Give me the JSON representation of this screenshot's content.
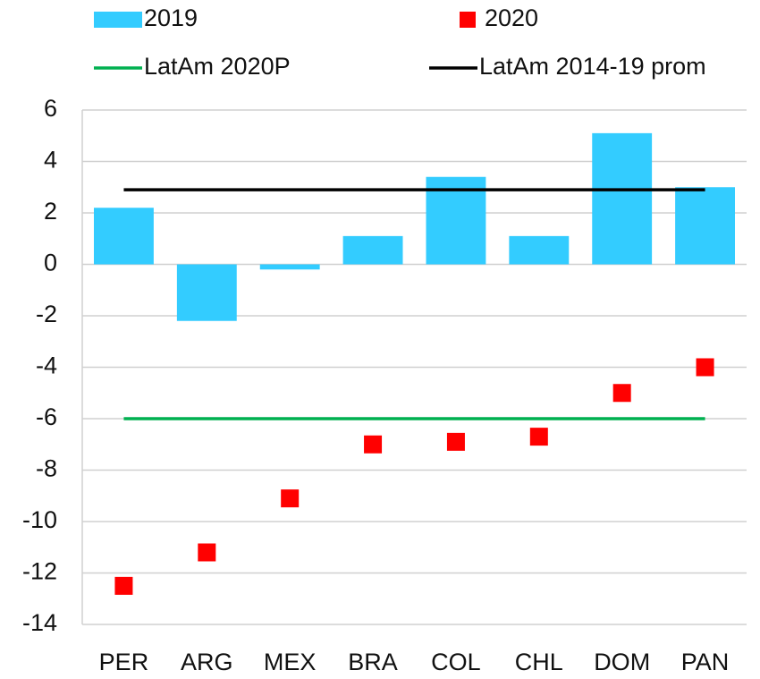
{
  "chart_data": {
    "type": "bar",
    "categories": [
      "PER",
      "ARG",
      "MEX",
      "BRA",
      "COL",
      "CHL",
      "DOM",
      "PAN"
    ],
    "series": [
      {
        "name": "2019",
        "mark": "bar",
        "color": "#33ccff",
        "values": [
          2.2,
          -2.2,
          -0.2,
          1.1,
          3.4,
          1.1,
          5.1,
          3.0
        ]
      },
      {
        "name": "2020",
        "mark": "square",
        "color": "#ff0000",
        "values": [
          -12.5,
          -11.2,
          -9.1,
          -7.0,
          -6.9,
          -6.7,
          -5.0,
          -4.0
        ]
      },
      {
        "name": "LatAm 2020P",
        "mark": "line",
        "color": "#00b050",
        "value": -6.0
      },
      {
        "name": "LatAm 2014-19 prom",
        "mark": "line",
        "color": "#000000",
        "value": 2.9
      }
    ],
    "ylim": [
      -14,
      6
    ],
    "yticks": [
      -14,
      -12,
      -10,
      -8,
      -6,
      -4,
      -2,
      0,
      2,
      4,
      6
    ],
    "grid": true
  }
}
